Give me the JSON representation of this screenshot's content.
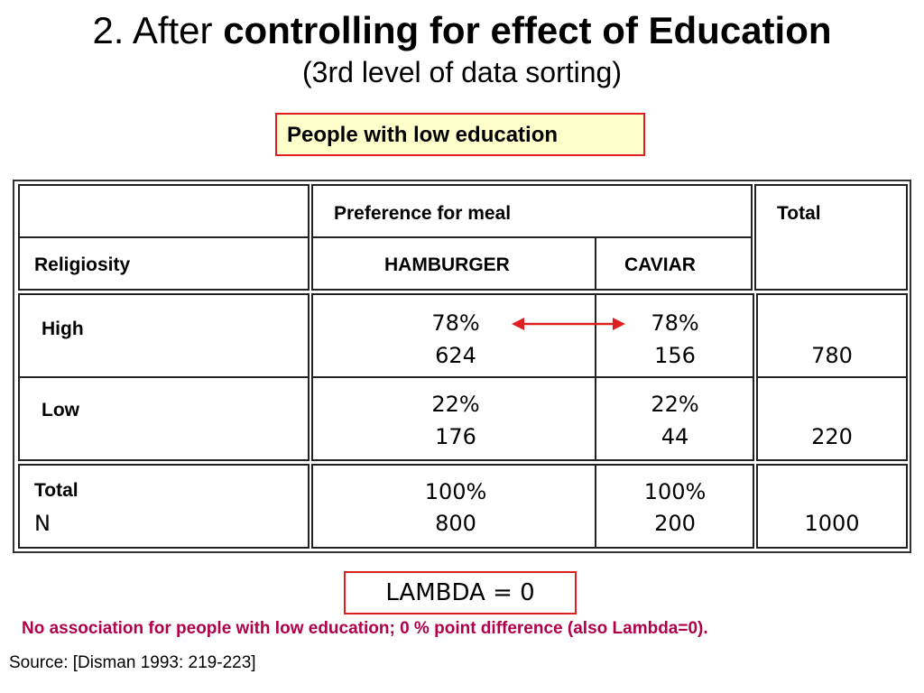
{
  "title": {
    "prefix": "2. After ",
    "bold": "controlling for effect of Education",
    "subtitle": "(3rd level of data sorting)"
  },
  "group_label": "People with low education",
  "table": {
    "header_group": "Preference for meal",
    "header_total": "Total",
    "row_header": "Religiosity",
    "columns": [
      "HAMBURGER",
      "CAVIAR"
    ],
    "rows": [
      {
        "label": "High",
        "hamburger_pct": "78%",
        "hamburger_n": "624",
        "caviar_pct": "78%",
        "caviar_n": "156",
        "total": "780"
      },
      {
        "label": "Low",
        "hamburger_pct": "22%",
        "hamburger_n": "176",
        "caviar_pct": "22%",
        "caviar_n": "44",
        "total": "220"
      },
      {
        "label": "Total",
        "label2": "N",
        "hamburger_pct": "100%",
        "hamburger_n": "800",
        "caviar_pct": "100%",
        "caviar_n": "200",
        "total": "1000"
      }
    ]
  },
  "lambda": "LAMBDA = 0",
  "note": "No association for people with low education; 0 % point difference (also Lambda=0).",
  "source": "Source: [Disman 1993: 219-223]",
  "colors": {
    "accent_red": "#e02020",
    "note_text": "#b0004a",
    "box_fill": "#ffffcc"
  }
}
